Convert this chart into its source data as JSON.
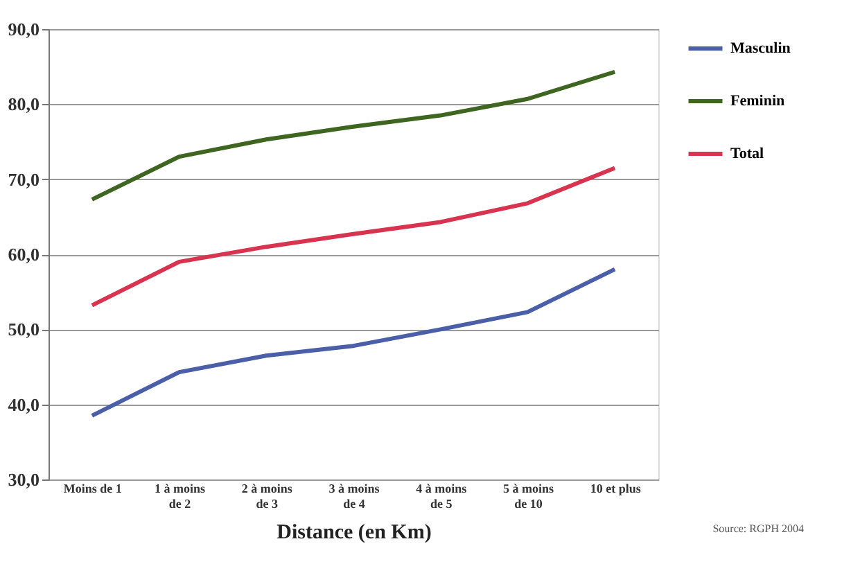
{
  "chart_data": {
    "type": "line",
    "xlabel": "Distance (en Km)",
    "categories": [
      "Moins de 1",
      "1 à moins de 2",
      "2 à moins de 3",
      "3 à moins de 4",
      "4 à moins de 5",
      "5 à moins de 10",
      "10 et plus"
    ],
    "series": [
      {
        "name": "Masculin",
        "color": "#4a5fa8",
        "values": [
          38.5,
          44.3,
          46.5,
          47.8,
          50.0,
          52.3,
          58.0
        ]
      },
      {
        "name": "Feminin",
        "color": "#3e6620",
        "values": [
          67.3,
          73.0,
          75.3,
          77.0,
          78.5,
          80.7,
          84.3
        ]
      },
      {
        "name": "Total",
        "color": "#d8344f",
        "values": [
          53.2,
          59.0,
          61.0,
          62.7,
          64.3,
          66.8,
          71.5
        ]
      }
    ],
    "ylim": [
      30,
      90
    ],
    "yticks": [
      {
        "value": 30,
        "label": "30,0"
      },
      {
        "value": 40,
        "label": "40,0"
      },
      {
        "value": 50,
        "label": "50,0"
      },
      {
        "value": 60,
        "label": "60,0"
      },
      {
        "value": 70,
        "label": "70,0"
      },
      {
        "value": 80,
        "label": "80,0"
      },
      {
        "value": 90,
        "label": "90,0"
      }
    ],
    "grid": "y",
    "legend": "right",
    "marker": "none",
    "line_style": "solid",
    "annotations": [
      "Source: RGPH 2004"
    ]
  }
}
